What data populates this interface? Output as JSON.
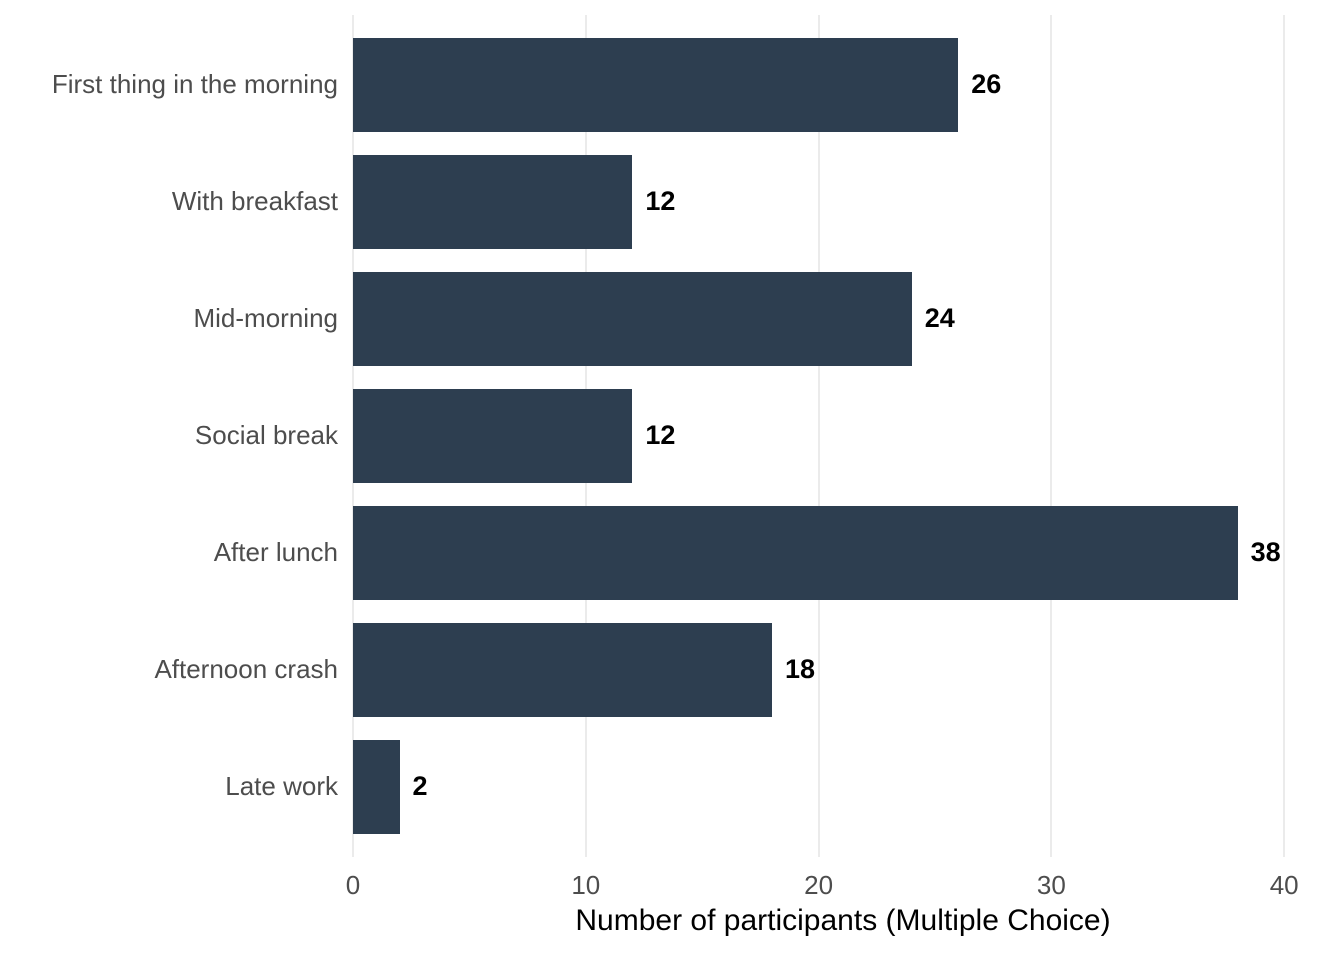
{
  "chart_data": {
    "type": "bar",
    "orientation": "horizontal",
    "title": "",
    "categories": [
      "First thing in the morning",
      "With breakfast",
      "Mid-morning",
      "Social break",
      "After lunch",
      "Afternoon crash",
      "Late work"
    ],
    "values": [
      26,
      12,
      24,
      12,
      38,
      18,
      2
    ],
    "value_labels": [
      "26",
      "12",
      "24",
      "12",
      "38",
      "18",
      "2"
    ],
    "xlabel": "Number of participants (Multiple Choice)",
    "ylabel": "",
    "xlim": [
      0,
      40
    ],
    "x_ticks": [
      0,
      10,
      20,
      30,
      40
    ],
    "grid": "major-vertical-only",
    "legend": "none",
    "colors": {
      "bar": "#2d3e50",
      "axis_text": "#4d4d4d",
      "value_label": "#000000",
      "axis_title": "#000000",
      "gridline": "#ebebeb",
      "background": "#ffffff"
    }
  }
}
